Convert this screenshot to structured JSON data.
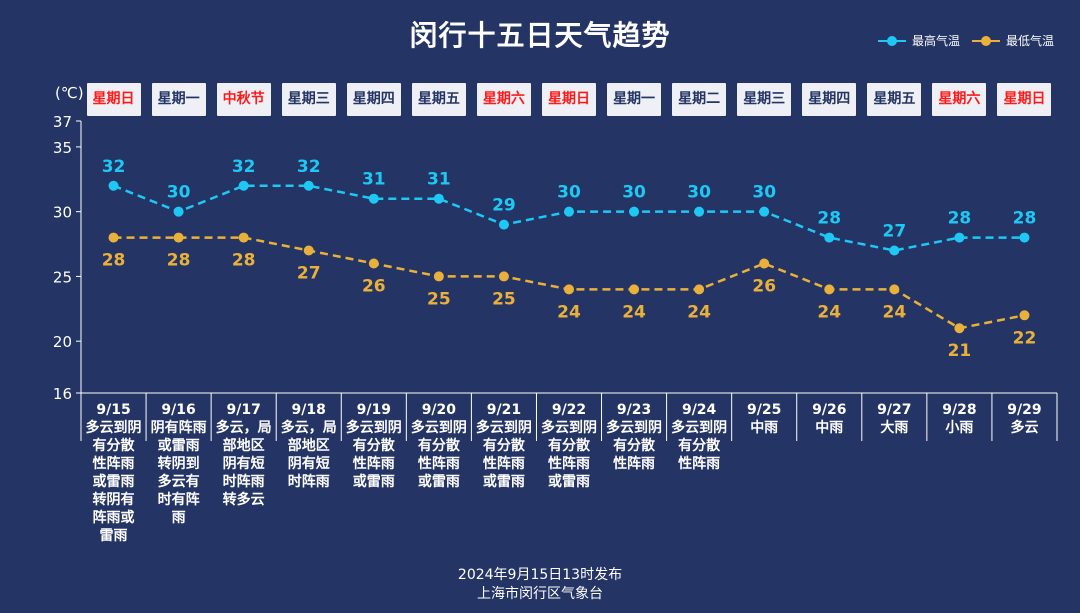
{
  "title": "闵行十五日天气趋势",
  "legend": {
    "high": "最高气温",
    "low": "最低气温"
  },
  "colors": {
    "background": "#243464",
    "high": "#1ec8f5",
    "low": "#eab13a",
    "weekday_red": "#ff1a1a",
    "weekday_dark": "#243464"
  },
  "unit": "(℃)",
  "weekdays": [
    {
      "label": "星期日",
      "red": true
    },
    {
      "label": "星期一",
      "red": false
    },
    {
      "label": "中秋节",
      "red": true
    },
    {
      "label": "星期三",
      "red": false
    },
    {
      "label": "星期四",
      "red": false
    },
    {
      "label": "星期五",
      "red": false
    },
    {
      "label": "星期六",
      "red": true
    },
    {
      "label": "星期日",
      "red": true
    },
    {
      "label": "星期一",
      "red": false
    },
    {
      "label": "星期二",
      "red": false
    },
    {
      "label": "星期三",
      "red": false
    },
    {
      "label": "星期四",
      "red": false
    },
    {
      "label": "星期五",
      "red": false
    },
    {
      "label": "星期六",
      "red": true
    },
    {
      "label": "星期日",
      "red": true
    }
  ],
  "chart_data": {
    "type": "line",
    "title": "闵行十五日天气趋势",
    "ylabel": "(℃)",
    "yticks": [
      16,
      20,
      25,
      30,
      35,
      37
    ],
    "ylim": [
      16,
      37
    ],
    "categories": [
      "9/15",
      "9/16",
      "9/17",
      "9/18",
      "9/19",
      "9/20",
      "9/21",
      "9/22",
      "9/23",
      "9/24",
      "9/25",
      "9/26",
      "9/27",
      "9/28",
      "9/29"
    ],
    "weather": [
      [
        "多云到阴",
        "有分散",
        "性阵雨",
        "或雷雨",
        "转阴有",
        "阵雨或",
        "雷雨"
      ],
      [
        "阴有阵雨",
        "或雷雨",
        "转阴到",
        "多云有",
        "时有阵",
        "雨"
      ],
      [
        "多云，局",
        "部地区",
        "阴有短",
        "时阵雨",
        "转多云"
      ],
      [
        "多云，局",
        "部地区",
        "阴有短",
        "时阵雨"
      ],
      [
        "多云到阴",
        "有分散",
        "性阵雨",
        "或雷雨"
      ],
      [
        "多云到阴",
        "有分散",
        "性阵雨",
        "或雷雨"
      ],
      [
        "多云到阴",
        "有分散",
        "性阵雨",
        "或雷雨"
      ],
      [
        "多云到阴",
        "有分散",
        "性阵雨",
        "或雷雨"
      ],
      [
        "多云到阴",
        "有分散",
        "性阵雨"
      ],
      [
        "多云到阴",
        "有分散",
        "性阵雨"
      ],
      [
        "中雨"
      ],
      [
        "中雨"
      ],
      [
        "大雨"
      ],
      [
        "小雨"
      ],
      [
        "多云"
      ]
    ],
    "series": [
      {
        "name": "最高气温",
        "values": [
          32,
          30,
          32,
          32,
          31,
          31,
          29,
          30,
          30,
          30,
          30,
          28,
          27,
          28,
          28
        ]
      },
      {
        "name": "最低气温",
        "values": [
          28,
          28,
          28,
          27,
          26,
          25,
          25,
          24,
          24,
          24,
          26,
          24,
          24,
          21,
          22
        ]
      }
    ]
  },
  "footer": {
    "line1": "2024年9月15日13时发布",
    "line2": "上海市闵行区气象台"
  }
}
